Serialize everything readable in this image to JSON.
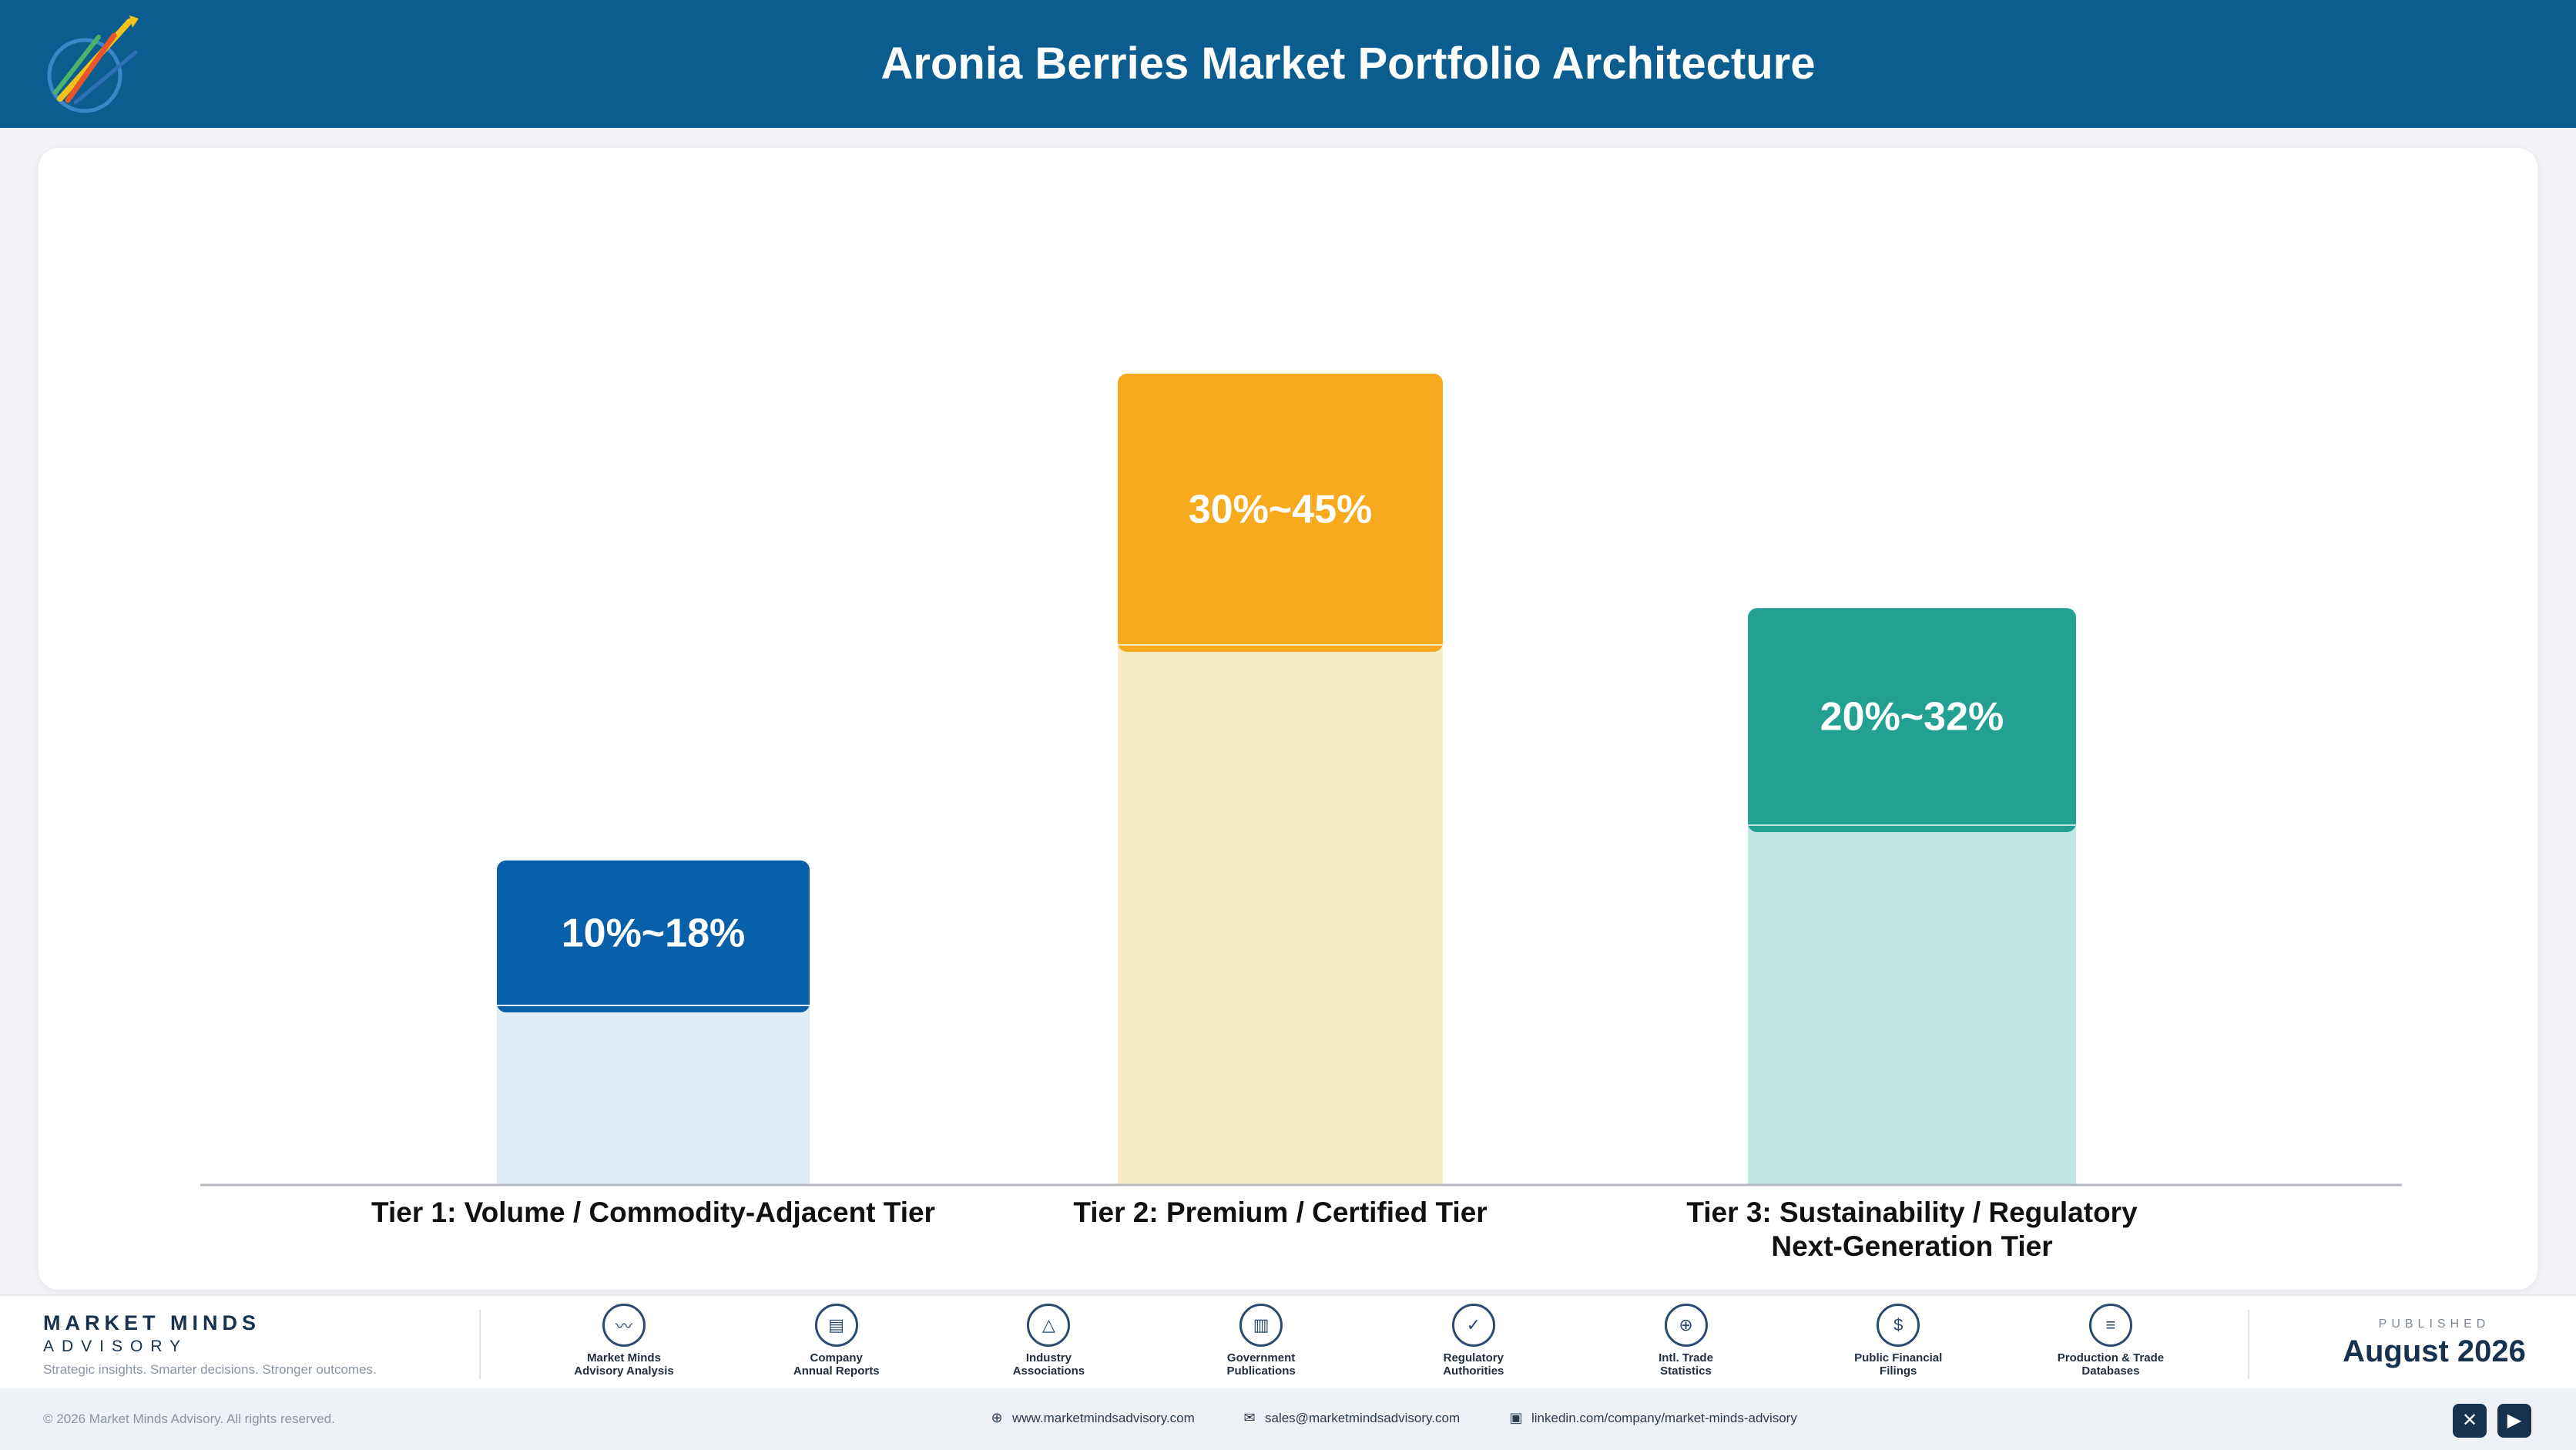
{
  "header": {
    "title": "Aronia Berries Market Portfolio Architecture"
  },
  "chart_data": {
    "type": "bar",
    "title": "",
    "categories": [
      [
        "Tier 1: Volume / Commodity-Adjacent Tier"
      ],
      [
        "Tier 2: Premium / Certified Tier"
      ],
      [
        "Tier 3: Sustainability / Regulatory",
        "Next-Generation Tier"
      ]
    ],
    "series": [
      {
        "values": [
          10,
          30,
          20
        ],
        "colors": [
          "#e1ecf5",
          "#f9ebc7",
          "#c0e6e1"
        ]
      },
      {
        "values": [
          8,
          15,
          12
        ],
        "colors": [
          "#0860a8",
          "#f8aa1e",
          "#22a192"
        ]
      }
    ],
    "data_labels": [
      "10%~18%",
      "30%~45%",
      "20%~32%"
    ],
    "ylim": [
      0,
      50
    ],
    "grid": false,
    "legend": "none"
  },
  "footer": {
    "brand_name": "MARKET MINDS",
    "brand_sub": "ADVISORY",
    "tagline": "Strategic insights. Smarter decisions. Stronger outcomes.",
    "sources": [
      {
        "icon": "trend-chart-icon",
        "glyph": "〰",
        "line1": "Market Minds",
        "line2": "Advisory Analysis"
      },
      {
        "icon": "document-icon",
        "glyph": "▤",
        "line1": "Company",
        "line2": "Annual Reports"
      },
      {
        "icon": "network-icon",
        "glyph": "△",
        "line1": "Industry",
        "line2": "Associations"
      },
      {
        "icon": "government-building-icon",
        "glyph": "▥",
        "line1": "Government",
        "line2": "Publications"
      },
      {
        "icon": "shield-check-icon",
        "glyph": "✓",
        "line1": "Regulatory",
        "line2": "Authorities"
      },
      {
        "icon": "globe-icon",
        "glyph": "⊕",
        "line1": "Intl. Trade",
        "line2": "Statistics"
      },
      {
        "icon": "coin-icon",
        "glyph": "$",
        "line1": "Public Financial",
        "line2": "Filings"
      },
      {
        "icon": "database-icon",
        "glyph": "≡",
        "line1": "Production & Trade",
        "line2": "Databases"
      }
    ],
    "published_label": "PUBLISHED",
    "published_date": "August 2026"
  },
  "bottom": {
    "copyright": "© 2026 Market Minds Advisory. All rights reserved.",
    "website": "www.marketmindsadvisory.com",
    "email": "sales@marketmindsadvisory.com",
    "linkedin": "linkedin.com/company/market-minds-advisory"
  }
}
